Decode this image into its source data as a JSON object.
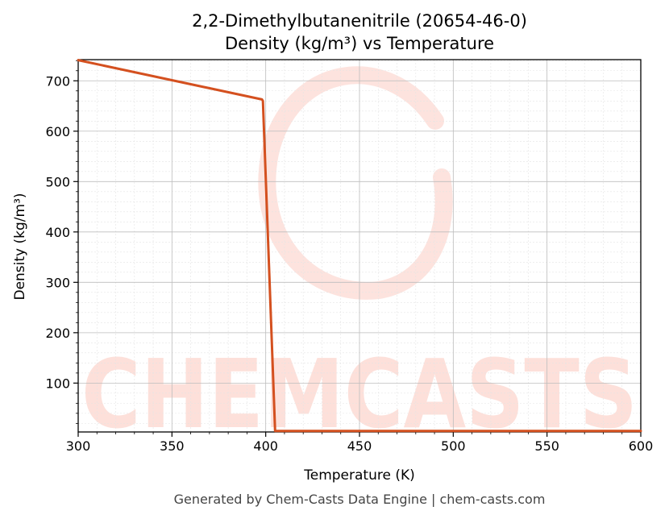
{
  "chart_data": {
    "type": "line",
    "title": "2,2-Dimethylbutanenitrile (20654-46-0)",
    "subtitle": "Density (kg/m³) vs Temperature",
    "xlabel": "Temperature (K)",
    "ylabel": "Density (kg/m³)",
    "xlim": [
      300,
      600
    ],
    "ylim": [
      3,
      742
    ],
    "xticks": [
      300,
      350,
      400,
      450,
      500,
      550,
      600
    ],
    "yticks": [
      100,
      200,
      300,
      400,
      500,
      600,
      700
    ],
    "grid": true,
    "series": [
      {
        "color": "#d4501f",
        "x": [
          300,
          398,
          398.5,
          405,
          600
        ],
        "y": [
          741,
          663,
          660,
          5,
          5
        ]
      }
    ]
  },
  "watermark": "CHEMCASTS",
  "footer": "Generated by Chem-Casts Data Engine | chem-casts.com"
}
